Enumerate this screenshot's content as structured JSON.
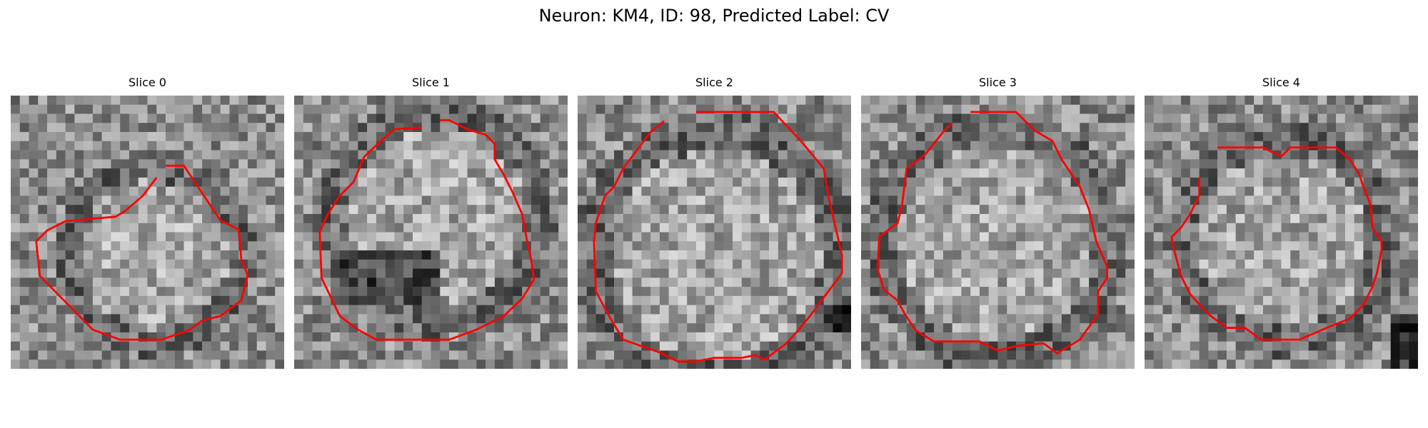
{
  "figure": {
    "title": "Neuron: KM4, ID: 98, Predicted Label: CV",
    "colors": {
      "contour": "#ff0000",
      "background": "#ffffff",
      "colormap": "grayscale"
    }
  },
  "panels": [
    {
      "title": "Slice 0"
    },
    {
      "title": "Slice 1"
    },
    {
      "title": "Slice 2"
    },
    {
      "title": "Slice 3"
    },
    {
      "title": "Slice 4"
    }
  ]
}
